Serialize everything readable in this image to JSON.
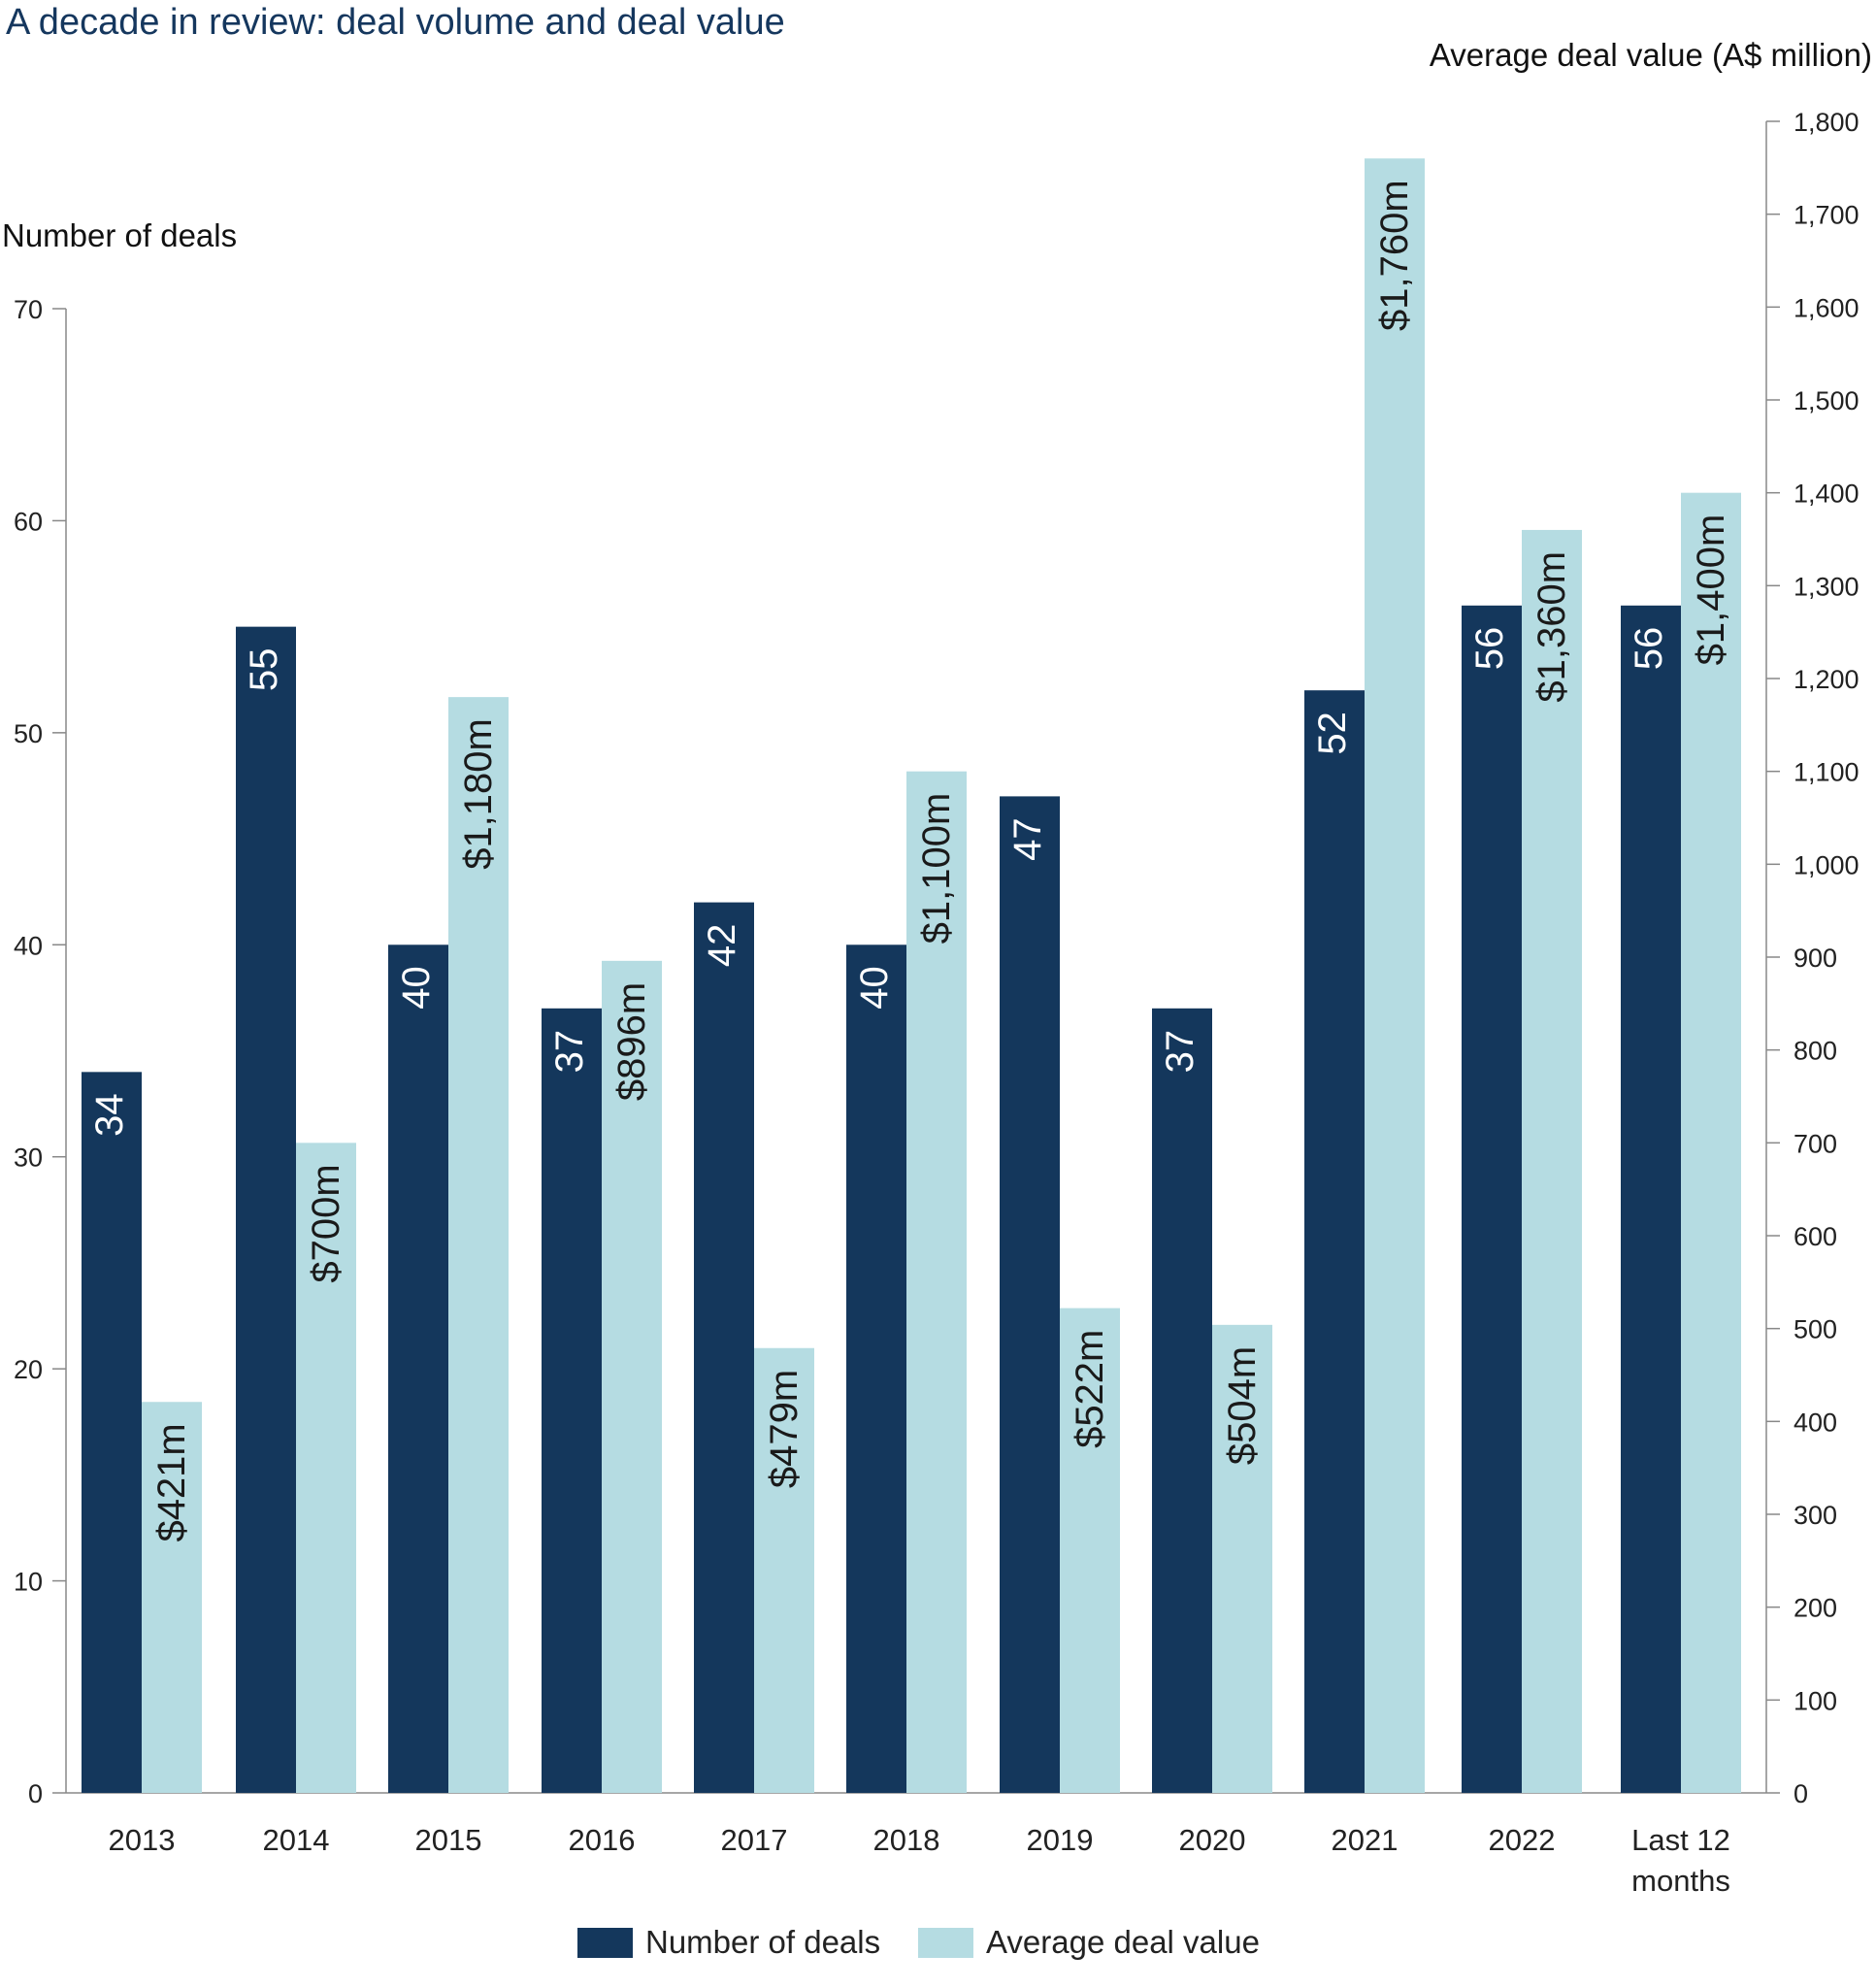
{
  "title": "A decade in review: deal volume and deal value",
  "colors": {
    "deals": "#14375c",
    "value": "#b5dce2",
    "axis": "#888888",
    "text": "#222222"
  },
  "chart_data": {
    "type": "bar",
    "categories": [
      "2013",
      "2014",
      "2015",
      "2016",
      "2017",
      "2018",
      "2019",
      "2020",
      "2021",
      "2022",
      "Last 12 months"
    ],
    "category_labels": [
      [
        "2013"
      ],
      [
        "2014"
      ],
      [
        "2015"
      ],
      [
        "2016"
      ],
      [
        "2017"
      ],
      [
        "2018"
      ],
      [
        "2019"
      ],
      [
        "2020"
      ],
      [
        "2021"
      ],
      [
        "2022"
      ],
      [
        "Last 12",
        "months"
      ]
    ],
    "series": [
      {
        "name": "Number of deals",
        "axis": "left",
        "values": [
          34,
          55,
          40,
          37,
          42,
          40,
          47,
          37,
          52,
          56,
          56
        ],
        "labels": [
          "34",
          "55",
          "40",
          "37",
          "42",
          "40",
          "47",
          "37",
          "52",
          "56",
          "56"
        ]
      },
      {
        "name": "Average deal value",
        "axis": "right",
        "values": [
          421,
          700,
          1180,
          896,
          479,
          1100,
          522,
          504,
          1760,
          1360,
          1400
        ],
        "labels": [
          "$421m",
          "$700m",
          "$1,180m",
          "$896m",
          "$479m",
          "$1,100m",
          "$522m",
          "$504m",
          "$1,760m",
          "$1,360m",
          "$1,400m"
        ]
      }
    ],
    "ylabel_left": "Number of deals",
    "ylabel_right": "Average deal value (A$ million)",
    "ylim_left": [
      0,
      70
    ],
    "yticks_left": [
      "0",
      "10",
      "20",
      "30",
      "40",
      "50",
      "60",
      "70"
    ],
    "ylim_right": [
      0,
      1800
    ],
    "yticks_right": [
      "0",
      "100",
      "200",
      "300",
      "400",
      "500",
      "600",
      "700",
      "800",
      "900",
      "1,000",
      "1,100",
      "1,200",
      "1,300",
      "1,400",
      "1,500",
      "1,600",
      "1,700",
      "1,800"
    ],
    "grid": false,
    "legend_position": "bottom-center"
  }
}
